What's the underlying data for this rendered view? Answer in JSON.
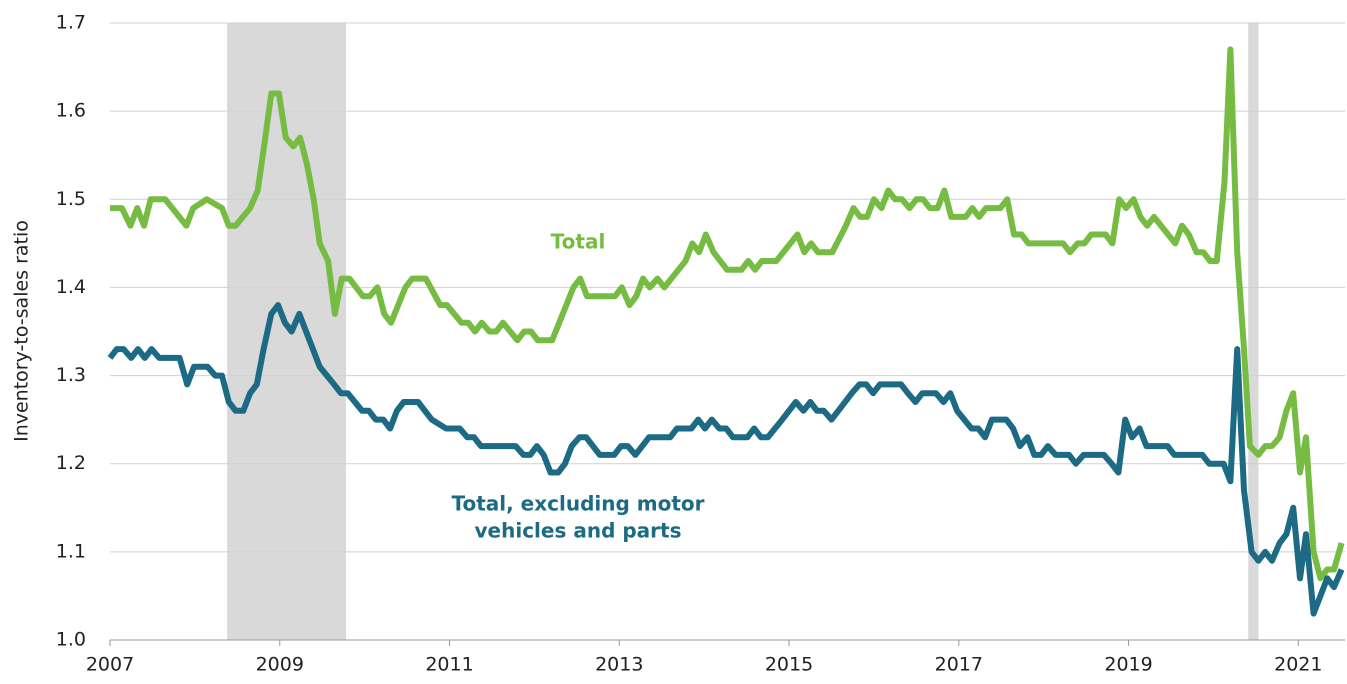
{
  "chart_data": {
    "type": "line",
    "ylabel": "Inventory-to-sales ratio",
    "xlim": [
      2007,
      2021.55
    ],
    "xticks": [
      2007,
      2009,
      2011,
      2013,
      2015,
      2017,
      2019,
      2021
    ],
    "ylim": [
      1.0,
      1.7
    ],
    "yticks": [
      {
        "value": 1.0,
        "label": "1.0"
      },
      1.1,
      1.2,
      1.3,
      1.4,
      1.5,
      1.6,
      1.7
    ],
    "grid": true,
    "shading": [
      [
        2008.38,
        2009.78
      ],
      [
        2020.41,
        2020.53
      ]
    ],
    "shading_color": "#d9d9d9",
    "annotations": [
      "Total",
      "Total, excluding motor",
      "vehicles and parts"
    ],
    "series": [
      {
        "name": "Total",
        "color": "#76bc43",
        "x": [
          2007.0,
          2007.14,
          2007.24,
          2007.32,
          2007.4,
          2007.48,
          2007.65,
          2007.9,
          2007.98,
          2008.14,
          2008.32,
          2008.4,
          2008.48,
          2008.65,
          2008.74,
          2008.83,
          2008.9,
          2008.99,
          2009.07,
          2009.16,
          2009.24,
          2009.32,
          2009.4,
          2009.47,
          2009.57,
          2009.65,
          2009.73,
          2009.82,
          2009.98,
          2010.06,
          2010.15,
          2010.23,
          2010.31,
          2010.48,
          2010.56,
          2010.72,
          2010.89,
          2010.97,
          2011.14,
          2011.22,
          2011.3,
          2011.38,
          2011.47,
          2011.55,
          2011.63,
          2011.8,
          2011.88,
          2011.96,
          2012.04,
          2012.21,
          2012.46,
          2012.54,
          2012.62,
          2012.95,
          2013.03,
          2013.12,
          2013.2,
          2013.28,
          2013.36,
          2013.45,
          2013.53,
          2013.78,
          2013.86,
          2013.94,
          2014.02,
          2014.11,
          2014.27,
          2014.44,
          2014.52,
          2014.6,
          2014.68,
          2014.85,
          2015.1,
          2015.18,
          2015.26,
          2015.34,
          2015.51,
          2015.67,
          2015.76,
          2015.84,
          2015.92,
          2016.0,
          2016.09,
          2016.17,
          2016.25,
          2016.33,
          2016.42,
          2016.5,
          2016.58,
          2016.66,
          2016.75,
          2016.83,
          2016.91,
          2017.08,
          2017.16,
          2017.24,
          2017.32,
          2017.49,
          2017.57,
          2017.65,
          2017.74,
          2017.82,
          2018.23,
          2018.31,
          2018.4,
          2018.48,
          2018.56,
          2018.73,
          2018.81,
          2018.89,
          2018.97,
          2019.06,
          2019.14,
          2019.22,
          2019.3,
          2019.55,
          2019.63,
          2019.71,
          2019.8,
          2019.88,
          2019.96,
          2020.04,
          2020.13,
          2020.2,
          2020.28,
          2020.36,
          2020.43,
          2020.53,
          2020.61,
          2020.69,
          2020.78,
          2020.86,
          2020.94,
          2021.02,
          2021.09,
          2021.18,
          2021.26,
          2021.34,
          2021.42,
          2021.51
        ],
        "values": [
          1.49,
          1.49,
          1.47,
          1.49,
          1.47,
          1.5,
          1.5,
          1.47,
          1.49,
          1.5,
          1.49,
          1.47,
          1.47,
          1.49,
          1.51,
          1.57,
          1.62,
          1.62,
          1.57,
          1.56,
          1.57,
          1.54,
          1.5,
          1.45,
          1.43,
          1.37,
          1.41,
          1.41,
          1.39,
          1.39,
          1.4,
          1.37,
          1.36,
          1.4,
          1.41,
          1.41,
          1.38,
          1.38,
          1.36,
          1.36,
          1.35,
          1.36,
          1.35,
          1.35,
          1.36,
          1.34,
          1.35,
          1.35,
          1.34,
          1.34,
          1.4,
          1.41,
          1.39,
          1.39,
          1.4,
          1.38,
          1.39,
          1.41,
          1.4,
          1.41,
          1.4,
          1.43,
          1.45,
          1.44,
          1.46,
          1.44,
          1.42,
          1.42,
          1.43,
          1.42,
          1.43,
          1.43,
          1.46,
          1.44,
          1.45,
          1.44,
          1.44,
          1.47,
          1.49,
          1.48,
          1.48,
          1.5,
          1.49,
          1.51,
          1.5,
          1.5,
          1.49,
          1.5,
          1.5,
          1.49,
          1.49,
          1.51,
          1.48,
          1.48,
          1.49,
          1.48,
          1.49,
          1.49,
          1.5,
          1.46,
          1.46,
          1.45,
          1.45,
          1.44,
          1.45,
          1.45,
          1.46,
          1.46,
          1.45,
          1.5,
          1.49,
          1.5,
          1.48,
          1.47,
          1.48,
          1.45,
          1.47,
          1.46,
          1.44,
          1.44,
          1.43,
          1.43,
          1.52,
          1.67,
          1.44,
          1.33,
          1.22,
          1.21,
          1.22,
          1.22,
          1.23,
          1.26,
          1.28,
          1.19,
          1.23,
          1.1,
          1.07,
          1.08,
          1.08,
          1.11
        ]
      },
      {
        "name": "Total, excluding motor vehicles and parts",
        "color": "#1c6a84",
        "x": [
          2007.0,
          2007.08,
          2007.16,
          2007.25,
          2007.33,
          2007.41,
          2007.49,
          2007.58,
          2007.82,
          2007.91,
          2007.99,
          2008.15,
          2008.24,
          2008.32,
          2008.4,
          2008.48,
          2008.57,
          2008.65,
          2008.73,
          2008.81,
          2008.9,
          2008.98,
          2009.06,
          2009.14,
          2009.23,
          2009.31,
          2009.39,
          2009.47,
          2009.64,
          2009.72,
          2009.8,
          2009.97,
          2010.05,
          2010.13,
          2010.22,
          2010.3,
          2010.38,
          2010.46,
          2010.63,
          2010.79,
          2010.96,
          2011.12,
          2011.21,
          2011.29,
          2011.37,
          2011.78,
          2011.87,
          2011.95,
          2012.03,
          2012.11,
          2012.19,
          2012.28,
          2012.36,
          2012.44,
          2012.53,
          2012.61,
          2012.77,
          2012.94,
          2013.02,
          2013.1,
          2013.19,
          2013.35,
          2013.6,
          2013.68,
          2013.85,
          2013.93,
          2014.01,
          2014.09,
          2014.18,
          2014.26,
          2014.34,
          2014.51,
          2014.59,
          2014.67,
          2014.75,
          2014.92,
          2015.08,
          2015.17,
          2015.25,
          2015.33,
          2015.41,
          2015.5,
          2015.58,
          2015.74,
          2015.83,
          2015.91,
          2015.99,
          2016.07,
          2016.32,
          2016.4,
          2016.49,
          2016.57,
          2016.73,
          2016.82,
          2016.9,
          2016.98,
          2017.15,
          2017.23,
          2017.31,
          2017.39,
          2017.56,
          2017.64,
          2017.72,
          2017.81,
          2017.89,
          2017.97,
          2018.05,
          2018.14,
          2018.3,
          2018.38,
          2018.47,
          2018.71,
          2018.8,
          2018.88,
          2018.96,
          2019.04,
          2019.13,
          2019.21,
          2019.46,
          2019.54,
          2019.87,
          2019.95,
          2020.12,
          2020.2,
          2020.28,
          2020.36,
          2020.45,
          2020.53,
          2020.61,
          2020.69,
          2020.78,
          2020.86,
          2020.94,
          2021.02,
          2021.09,
          2021.18,
          2021.26,
          2021.34,
          2021.42,
          2021.51
        ],
        "values": [
          1.32,
          1.33,
          1.33,
          1.32,
          1.33,
          1.32,
          1.33,
          1.32,
          1.32,
          1.29,
          1.31,
          1.31,
          1.3,
          1.3,
          1.27,
          1.26,
          1.26,
          1.28,
          1.29,
          1.33,
          1.37,
          1.38,
          1.36,
          1.35,
          1.37,
          1.35,
          1.33,
          1.31,
          1.29,
          1.28,
          1.28,
          1.26,
          1.26,
          1.25,
          1.25,
          1.24,
          1.26,
          1.27,
          1.27,
          1.25,
          1.24,
          1.24,
          1.23,
          1.23,
          1.22,
          1.22,
          1.21,
          1.21,
          1.22,
          1.21,
          1.19,
          1.19,
          1.2,
          1.22,
          1.23,
          1.23,
          1.21,
          1.21,
          1.22,
          1.22,
          1.21,
          1.23,
          1.23,
          1.24,
          1.24,
          1.25,
          1.24,
          1.25,
          1.24,
          1.24,
          1.23,
          1.23,
          1.24,
          1.23,
          1.23,
          1.25,
          1.27,
          1.26,
          1.27,
          1.26,
          1.26,
          1.25,
          1.26,
          1.28,
          1.29,
          1.29,
          1.28,
          1.29,
          1.29,
          1.28,
          1.27,
          1.28,
          1.28,
          1.27,
          1.28,
          1.26,
          1.24,
          1.24,
          1.23,
          1.25,
          1.25,
          1.24,
          1.22,
          1.23,
          1.21,
          1.21,
          1.22,
          1.21,
          1.21,
          1.2,
          1.21,
          1.21,
          1.2,
          1.19,
          1.25,
          1.23,
          1.24,
          1.22,
          1.22,
          1.21,
          1.21,
          1.2,
          1.2,
          1.18,
          1.33,
          1.17,
          1.1,
          1.09,
          1.1,
          1.09,
          1.11,
          1.12,
          1.15,
          1.07,
          1.12,
          1.03,
          1.05,
          1.07,
          1.06,
          1.08
        ]
      }
    ]
  }
}
